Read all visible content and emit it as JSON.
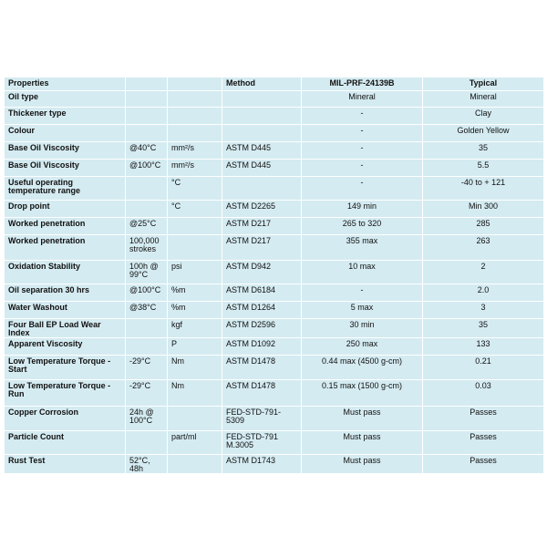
{
  "header": {
    "properties": "Properties",
    "condition": "",
    "unit": "",
    "method": "Method",
    "spec": "MIL-PRF-24139B",
    "typical": "Typical"
  },
  "rows": [
    {
      "property": "Oil type",
      "condition": "",
      "unit": "",
      "method": "",
      "spec": "Mineral",
      "typical": "Mineral"
    },
    {
      "property": "Thickener type",
      "condition": "",
      "unit": "",
      "method": "",
      "spec": "-",
      "typical": "Clay"
    },
    {
      "property": "Colour",
      "condition": "",
      "unit": "",
      "method": "",
      "spec": "-",
      "typical": "Golden Yellow"
    },
    {
      "property": "Base Oil Viscosity",
      "condition": "@40°C",
      "unit": "mm²/s",
      "method": "ASTM D445",
      "spec": "-",
      "typical": "35"
    },
    {
      "property": "Base Oil Viscosity",
      "condition": "@100°C",
      "unit": "mm²/s",
      "method": "ASTM D445",
      "spec": "-",
      "typical": "5.5"
    },
    {
      "property": "Useful operating temperature range",
      "condition": "",
      "unit": "°C",
      "method": "",
      "spec": "-",
      "typical": "-40 to + 121"
    },
    {
      "property": "Drop point",
      "condition": "",
      "unit": "°C",
      "method": "ASTM D2265",
      "spec": "149 min",
      "typical": "Min 300"
    },
    {
      "property": "Worked penetration",
      "condition": "@25°C",
      "unit": "",
      "method": "ASTM D217",
      "spec": "265 to 320",
      "typical": "285"
    },
    {
      "property": "Worked penetration",
      "condition": "100,000 strokes",
      "unit": "",
      "method": "ASTM D217",
      "spec": "355 max",
      "typical": "263"
    },
    {
      "property": "Oxidation Stability",
      "condition": "100h @ 99°C",
      "unit": "psi",
      "method": "ASTM D942",
      "spec": "10 max",
      "typical": "2"
    },
    {
      "property": "Oil separation 30 hrs",
      "condition": "@100°C",
      "unit": "%m",
      "method": "ASTM D6184",
      "spec": "-",
      "typical": "2.0"
    },
    {
      "property": "Water Washout",
      "condition": "@38°C",
      "unit": "%m",
      "method": "ASTM D1264",
      "spec": "5 max",
      "typical": "3"
    },
    {
      "property": "Four Ball EP Load Wear Index",
      "condition": "",
      "unit": "kgf",
      "method": "ASTM D2596",
      "spec": "30 min",
      "typical": "35"
    },
    {
      "property": "Apparent Viscosity",
      "condition": "",
      "unit": "P",
      "method": "ASTM D1092",
      "spec": "250 max",
      "typical": "133"
    },
    {
      "property": "Low Temperature Torque - Start",
      "condition": "-29°C",
      "unit": "Nm",
      "method": "ASTM D1478",
      "spec": "0.44 max (4500 g-cm)",
      "typical": "0.21"
    },
    {
      "property": "Low Temperature Torque - Run",
      "condition": "-29°C",
      "unit": "Nm",
      "method": "ASTM D1478",
      "spec": "0.15 max (1500 g-cm)",
      "typical": "0.03"
    },
    {
      "property": "Copper Corrosion",
      "condition": "24h @ 100°C",
      "unit": "",
      "method": "FED-STD-791-5309",
      "spec": "Must pass",
      "typical": "Passes"
    },
    {
      "property": "Particle Count",
      "condition": "",
      "unit": "part/ml",
      "method": "FED-STD-791 M.3005",
      "spec": "Must pass",
      "typical": "Passes"
    },
    {
      "property": "Rust Test",
      "condition": "52°C, 48h",
      "unit": "",
      "method": "ASTM D1743",
      "spec": "Must pass",
      "typical": "Passes"
    }
  ]
}
